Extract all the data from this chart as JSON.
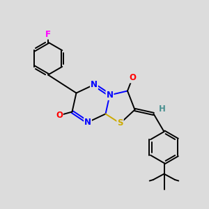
{
  "background_color": "#dcdcdc",
  "atom_colors": {
    "C": "#000000",
    "N": "#0000ff",
    "O": "#ff0000",
    "S": "#ccaa00",
    "F": "#ff00ff",
    "H": "#4a9090"
  },
  "bond_color": "#000000",
  "figsize": [
    3.0,
    3.0
  ],
  "dpi": 100,
  "lw": 1.4,
  "fs": 8.5
}
